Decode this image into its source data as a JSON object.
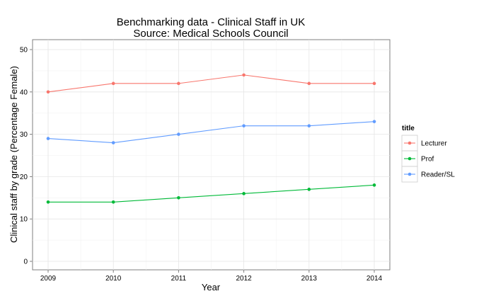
{
  "chart_data": {
    "type": "line",
    "title": "Benchmarking data - Clinical Staff in UK",
    "subtitle": "Source: Medical Schools Council",
    "xlabel": "Year",
    "ylabel": "Clinical staff by grade (Percentage Female)",
    "x": [
      2009,
      2010,
      2011,
      2012,
      2013,
      2014
    ],
    "xticks": [
      "2009",
      "2010",
      "2011",
      "2012",
      "2013",
      "2014"
    ],
    "ylim": [
      0,
      50
    ],
    "yticks": [
      "0",
      "10",
      "20",
      "30",
      "40",
      "50"
    ],
    "grid": true,
    "legend": {
      "title": "title",
      "position": "right"
    },
    "series": [
      {
        "name": "Lecturer",
        "color": "#F8766D",
        "values": [
          40,
          42,
          42,
          44,
          42,
          42
        ]
      },
      {
        "name": "Prof",
        "color": "#00BA38",
        "values": [
          14,
          14,
          15,
          16,
          17,
          18
        ]
      },
      {
        "name": "Reader/SL",
        "color": "#619CFF",
        "values": [
          29,
          28,
          30,
          32,
          32,
          33
        ]
      }
    ]
  }
}
